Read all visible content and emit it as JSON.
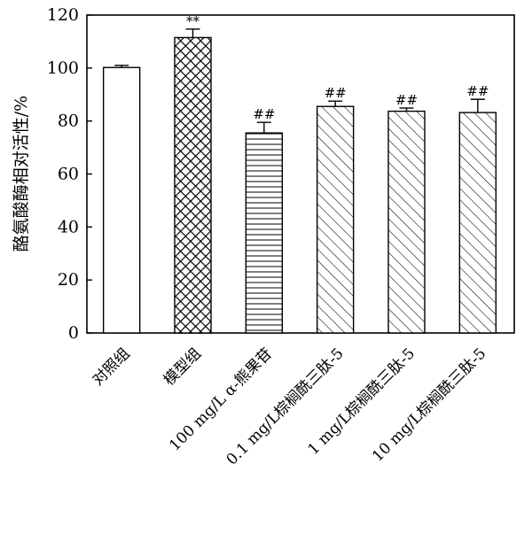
{
  "chart_data": {
    "type": "bar",
    "title": "",
    "xlabel": "",
    "ylabel": "酪氨酸酶相对活性/%",
    "ylim": [
      0,
      120
    ],
    "yticks": [
      0,
      20,
      40,
      60,
      80,
      100,
      120
    ],
    "categories": [
      "对照组",
      "模型组",
      "100 mg/L α-熊果苷",
      "0.1 mg/L棕榈酰三肽-5",
      "1 mg/L棕榈酰三肽-5",
      "10 mg/L棕榈酰三肽-5"
    ],
    "values": [
      100.2,
      111.5,
      75.5,
      85.5,
      83.7,
      83.2
    ],
    "errors": [
      0.8,
      3.2,
      4.0,
      2.0,
      1.2,
      5.0
    ],
    "annotations": [
      "",
      "**",
      "##",
      "##",
      "##",
      "##"
    ],
    "patterns": [
      "none",
      "crosshatch",
      "horizontal",
      "diagonal",
      "diagonal",
      "diagonal"
    ],
    "grid": false
  }
}
